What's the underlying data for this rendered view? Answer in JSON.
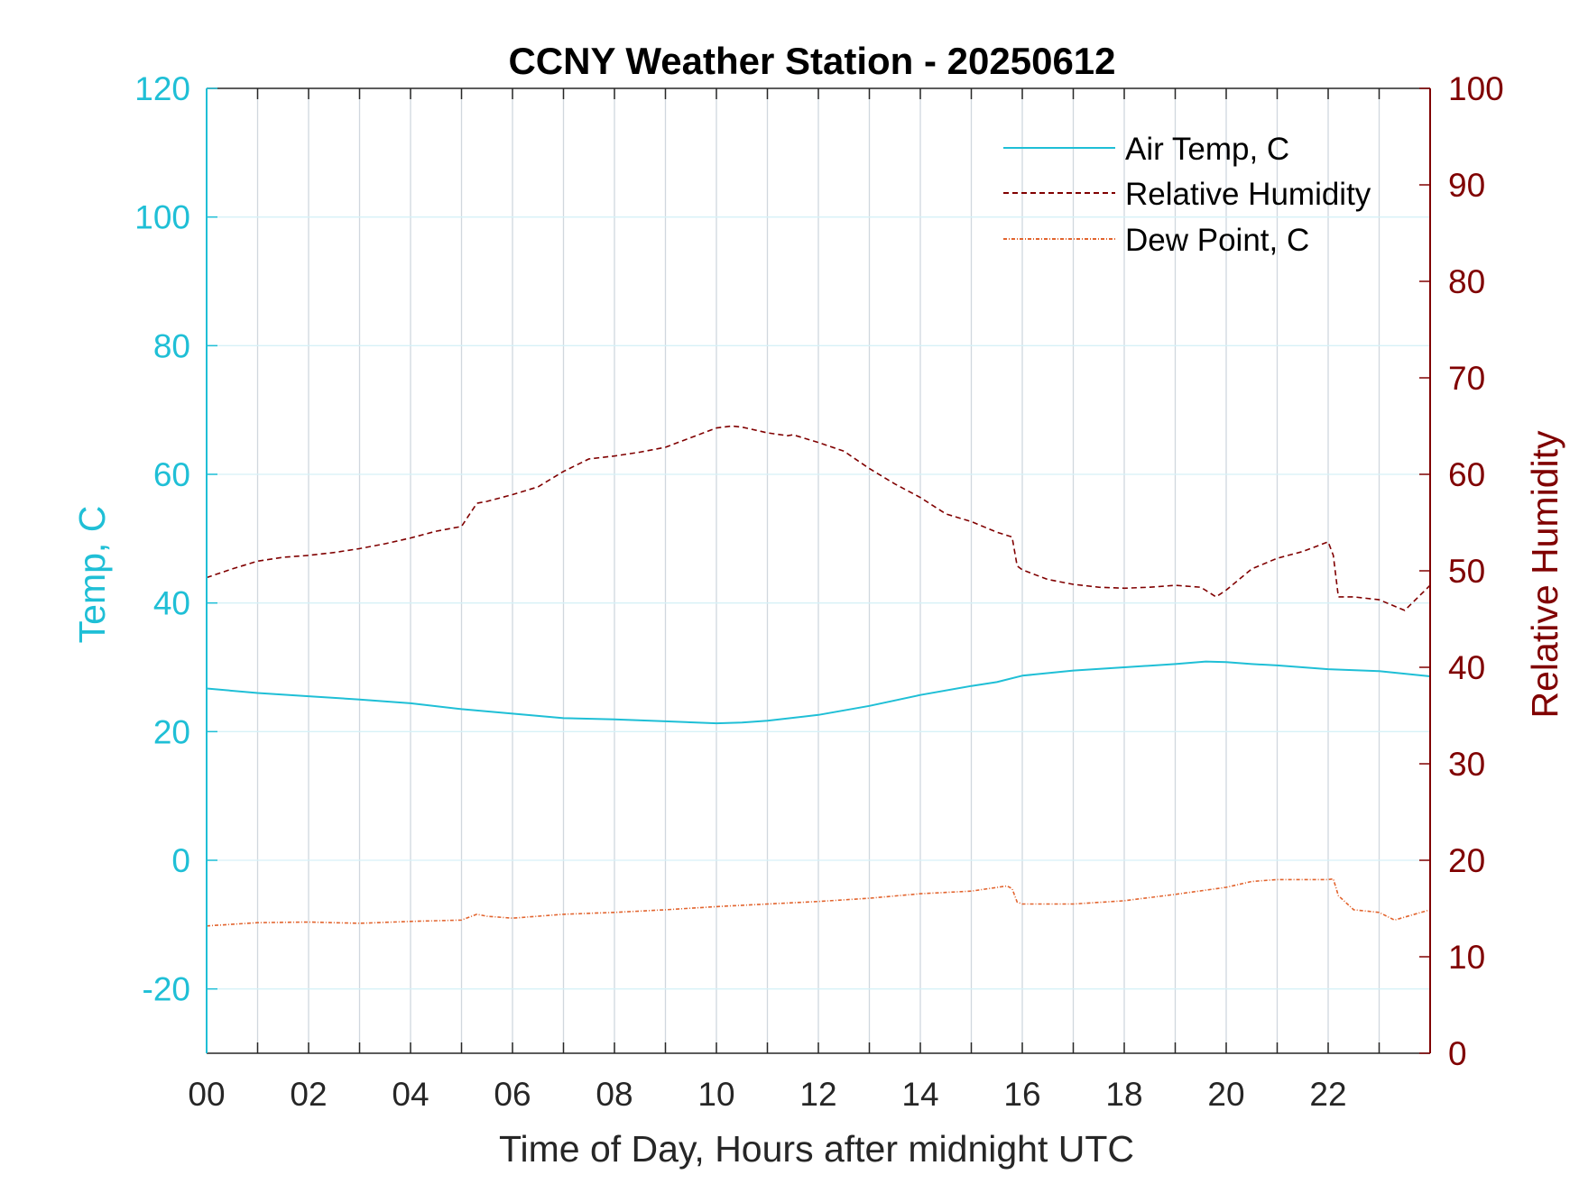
{
  "colors": {
    "temp": "#1FBFD6",
    "rh": "#800000",
    "dew": "#E2642E",
    "grid_v": "#D0D7DE",
    "grid_h": "#D6F1F7",
    "xaxis": "#262626"
  },
  "chart_data": {
    "type": "line",
    "title": "CCNY Weather Station - 20250612",
    "xlabel": "Time of Day, Hours after midnight UTC",
    "ylabel_left": "Temp, C",
    "ylabel_right": "Relative Humidity",
    "xlim": [
      0,
      24
    ],
    "ylim_left": [
      -30,
      120
    ],
    "ylim_right": [
      0,
      100
    ],
    "x_ticks": [
      0,
      2,
      4,
      6,
      8,
      10,
      12,
      14,
      16,
      18,
      20,
      22
    ],
    "x_tick_labels": [
      "00",
      "02",
      "04",
      "06",
      "08",
      "10",
      "12",
      "14",
      "16",
      "18",
      "20",
      "22"
    ],
    "y_left_ticks": [
      -20,
      0,
      20,
      40,
      60,
      80,
      100,
      120
    ],
    "y_right_ticks": [
      0,
      10,
      20,
      30,
      40,
      50,
      60,
      70,
      80,
      90,
      100
    ],
    "grid": true,
    "legend_position": "top-right",
    "series": [
      {
        "name": "Air Temp, C",
        "axis": "left",
        "style": "solid",
        "x": [
          0,
          1,
          2,
          3,
          4,
          5,
          6,
          7,
          8,
          9,
          10,
          10.5,
          11,
          12,
          13,
          14,
          15,
          15.5,
          16,
          17,
          18,
          19,
          19.6,
          20,
          20.5,
          21,
          22,
          23,
          24
        ],
        "y": [
          26.7,
          26.0,
          25.5,
          25.0,
          24.4,
          23.5,
          22.8,
          22.1,
          21.9,
          21.6,
          21.3,
          21.4,
          21.7,
          22.6,
          24.0,
          25.7,
          27.1,
          27.7,
          28.7,
          29.5,
          30.0,
          30.5,
          30.9,
          30.8,
          30.5,
          30.3,
          29.7,
          29.4,
          28.6
        ]
      },
      {
        "name": "Relative Humidity",
        "axis": "right",
        "style": "dashed",
        "x": [
          0,
          0.5,
          1,
          1.5,
          2,
          2.5,
          3,
          3.5,
          4,
          4.5,
          5,
          5.3,
          5.5,
          6,
          6.5,
          7,
          7.5,
          8,
          8.5,
          9,
          9.5,
          10,
          10.3,
          10.5,
          11,
          11.4,
          11.5,
          12,
          12.5,
          13,
          13.5,
          14,
          14.5,
          15,
          15.5,
          15.8,
          15.9,
          16,
          16.5,
          17,
          17.5,
          18,
          18.5,
          19,
          19.5,
          19.8,
          20,
          20.5,
          21,
          21.5,
          22,
          22.1,
          22.2,
          22.5,
          23,
          23.5,
          24
        ],
        "y": [
          49.3,
          50.2,
          51.0,
          51.4,
          51.6,
          51.9,
          52.3,
          52.8,
          53.4,
          54.1,
          54.6,
          57.0,
          57.2,
          57.9,
          58.7,
          60.3,
          61.6,
          61.9,
          62.3,
          62.8,
          63.8,
          64.8,
          65.0,
          64.9,
          64.3,
          64.0,
          64.1,
          63.3,
          62.4,
          60.6,
          59.0,
          57.6,
          55.9,
          55.1,
          54.0,
          53.5,
          50.5,
          50.1,
          49.1,
          48.6,
          48.3,
          48.2,
          48.3,
          48.5,
          48.3,
          47.3,
          48.0,
          50.2,
          51.3,
          52.0,
          53.0,
          51.6,
          47.3,
          47.3,
          47.0,
          45.9,
          48.5
        ]
      },
      {
        "name": "Dew Point, C",
        "axis": "left",
        "style": "dashdot",
        "x": [
          0,
          1,
          2,
          3,
          4,
          5,
          5.3,
          5.5,
          6,
          7,
          8,
          9,
          10,
          11,
          12,
          13,
          14,
          15,
          15.7,
          15.8,
          15.9,
          16,
          17,
          18,
          19,
          20,
          20.5,
          21,
          22,
          22.1,
          22.2,
          22.5,
          23,
          23.3,
          24
        ],
        "y": [
          -10.2,
          -9.7,
          -9.6,
          -9.8,
          -9.5,
          -9.3,
          -8.4,
          -8.7,
          -9.0,
          -8.4,
          -8.1,
          -7.7,
          -7.2,
          -6.8,
          -6.4,
          -5.9,
          -5.2,
          -4.8,
          -4.0,
          -4.4,
          -6.5,
          -6.8,
          -6.8,
          -6.3,
          -5.3,
          -4.2,
          -3.3,
          -3.0,
          -3.0,
          -2.9,
          -5.5,
          -7.7,
          -8.1,
          -9.3,
          -7.7
        ]
      }
    ]
  }
}
